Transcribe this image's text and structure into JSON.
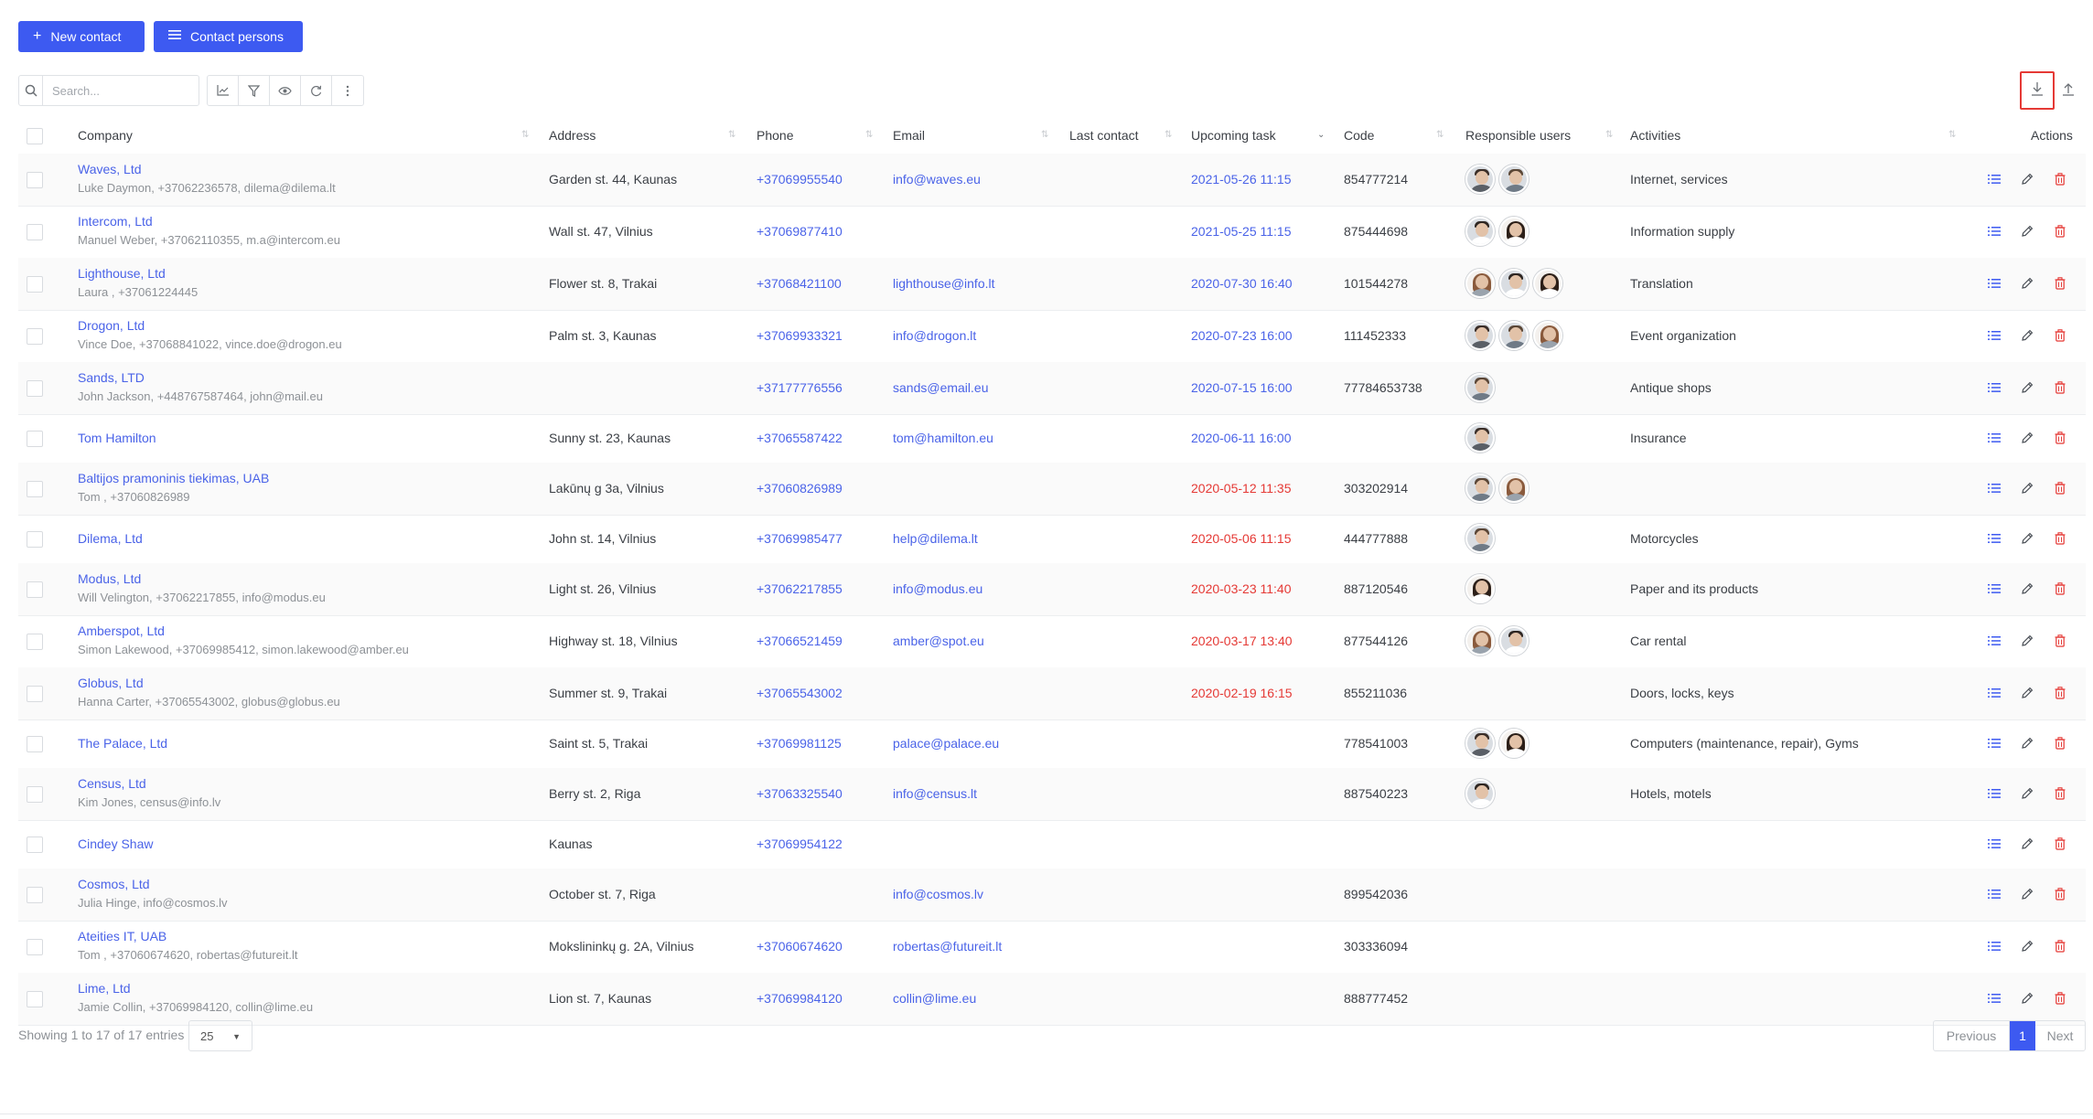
{
  "header": {
    "new_contact_label": "New contact",
    "contact_persons_label": "Contact persons"
  },
  "toolbar": {
    "search_placeholder": "Search...",
    "icons": [
      "search-icon",
      "chart-icon",
      "filter-icon",
      "eye-icon",
      "refresh-icon",
      "more-vertical-icon"
    ],
    "export_icon": "download-icon",
    "import_icon": "upload-icon"
  },
  "columns": {
    "company": "Company",
    "address": "Address",
    "phone": "Phone",
    "email": "Email",
    "last_contact": "Last contact",
    "upcoming_task": "Upcoming task",
    "code": "Code",
    "responsible_users": "Responsible users",
    "activities": "Activities",
    "actions": "Actions"
  },
  "rows": [
    {
      "company": "Waves, Ltd",
      "sub": "Luke Daymon, +37062236578, dilema@dilema.lt",
      "address": "Garden st. 44, Kaunas",
      "phone": "+37069955540",
      "email": "info@waves.eu",
      "last_contact": "",
      "task": "2021-05-26 11:15",
      "task_overdue": false,
      "code": "854777214",
      "users": [
        "m1",
        "m2"
      ],
      "activities": "Internet, services"
    },
    {
      "company": "Intercom, Ltd",
      "sub": "Manuel Weber, +37062110355, m.a@intercom.eu",
      "address": "Wall st. 47, Vilnius",
      "phone": "+37069877410",
      "email": "",
      "last_contact": "",
      "task": "2021-05-25 11:15",
      "task_overdue": false,
      "code": "875444698",
      "users": [
        "m3",
        "f1"
      ],
      "activities": "Information supply"
    },
    {
      "company": "Lighthouse, Ltd",
      "sub": "Laura , +37061224445",
      "address": "Flower st. 8, Trakai",
      "phone": "+37068421100",
      "email": "lighthouse@info.lt",
      "last_contact": "",
      "task": "2020-07-30 16:40",
      "task_overdue": false,
      "code": "101544278",
      "users": [
        "f2",
        "m3",
        "f1"
      ],
      "activities": "Translation"
    },
    {
      "company": "Drogon, Ltd",
      "sub": "Vince Doe, +37068841022, vince.doe@drogon.eu",
      "address": "Palm st. 3, Kaunas",
      "phone": "+37069933321",
      "email": "info@drogon.lt",
      "last_contact": "",
      "task": "2020-07-23 16:00",
      "task_overdue": false,
      "code": "111452333",
      "users": [
        "m1",
        "m2",
        "f2"
      ],
      "activities": "Event organization"
    },
    {
      "company": "Sands, LTD",
      "sub": "John Jackson, +448767587464, john@mail.eu",
      "address": "",
      "phone": "+37177776556",
      "email": "sands@email.eu",
      "last_contact": "",
      "task": "2020-07-15 16:00",
      "task_overdue": false,
      "code": "77784653738",
      "users": [
        "m2"
      ],
      "activities": "Antique shops"
    },
    {
      "company": "Tom Hamilton",
      "sub": "",
      "address": "Sunny st. 23, Kaunas",
      "phone": "+37065587422",
      "email": "tom@hamilton.eu",
      "last_contact": "",
      "task": "2020-06-11 16:00",
      "task_overdue": false,
      "code": "",
      "users": [
        "m1"
      ],
      "activities": "Insurance"
    },
    {
      "company": "Baltijos pramoninis tiekimas, UAB",
      "sub": "Tom , +37060826989",
      "address": "Lakūnų g 3a, Vilnius",
      "phone": "+37060826989",
      "email": "",
      "last_contact": "",
      "task": "2020-05-12 11:35",
      "task_overdue": true,
      "code": "303202914",
      "users": [
        "m2",
        "f2"
      ],
      "activities": ""
    },
    {
      "company": "Dilema, Ltd",
      "sub": "",
      "address": "John st. 14, Vilnius",
      "phone": "+37069985477",
      "email": "help@dilema.lt",
      "last_contact": "",
      "task": "2020-05-06 11:15",
      "task_overdue": true,
      "code": "444777888",
      "users": [
        "m2"
      ],
      "activities": "Motorcycles"
    },
    {
      "company": "Modus, Ltd",
      "sub": "Will Velington, +37062217855, info@modus.eu",
      "address": "Light st. 26, Vilnius",
      "phone": "+37062217855",
      "email": "info@modus.eu",
      "last_contact": "",
      "task": "2020-03-23 11:40",
      "task_overdue": true,
      "code": "887120546",
      "users": [
        "f1"
      ],
      "activities": "Paper and its products"
    },
    {
      "company": "Amberspot, Ltd",
      "sub": "Simon Lakewood, +37069985412, simon.lakewood@amber.eu",
      "address": "Highway st. 18, Vilnius",
      "phone": "+37066521459",
      "email": "amber@spot.eu",
      "last_contact": "",
      "task": "2020-03-17 13:40",
      "task_overdue": true,
      "code": "877544126",
      "users": [
        "f2",
        "m3"
      ],
      "activities": "Car rental"
    },
    {
      "company": "Globus, Ltd",
      "sub": "Hanna Carter, +37065543002, globus@globus.eu",
      "address": "Summer st. 9, Trakai",
      "phone": "+37065543002",
      "email": "",
      "last_contact": "",
      "task": "2020-02-19 16:15",
      "task_overdue": true,
      "code": "855211036",
      "users": [],
      "activities": "Doors, locks, keys"
    },
    {
      "company": "The Palace, Ltd",
      "sub": "",
      "address": "Saint st. 5, Trakai",
      "phone": "+37069981125",
      "email": "palace@palace.eu",
      "last_contact": "",
      "task": "",
      "task_overdue": false,
      "code": "778541003",
      "users": [
        "m1",
        "f1"
      ],
      "activities": "Computers (maintenance, repair), Gyms"
    },
    {
      "company": "Census, Ltd",
      "sub": "Kim Jones, census@info.lv",
      "address": "Berry st. 2, Riga",
      "phone": "+37063325540",
      "email": "info@census.lt",
      "last_contact": "",
      "task": "",
      "task_overdue": false,
      "code": "887540223",
      "users": [
        "m3"
      ],
      "activities": "Hotels, motels"
    },
    {
      "company": "Cindey Shaw",
      "sub": "",
      "address": "Kaunas",
      "phone": "+37069954122",
      "email": "",
      "last_contact": "",
      "task": "",
      "task_overdue": false,
      "code": "",
      "users": [],
      "activities": ""
    },
    {
      "company": "Cosmos, Ltd",
      "sub": "Julia Hinge, info@cosmos.lv",
      "address": "October st. 7, Riga",
      "phone": "",
      "email": "info@cosmos.lv",
      "last_contact": "",
      "task": "",
      "task_overdue": false,
      "code": "899542036",
      "users": [],
      "activities": ""
    },
    {
      "company": "Ateities IT, UAB",
      "sub": "Tom , +37060674620, robertas@futureit.lt",
      "address": "Mokslininkų g. 2A, Vilnius",
      "phone": "+37060674620",
      "email": "robertas@futureit.lt",
      "last_contact": "",
      "task": "",
      "task_overdue": false,
      "code": "303336094",
      "users": [],
      "activities": ""
    },
    {
      "company": "Lime, Ltd",
      "sub": "Jamie Collin, +37069984120, collin@lime.eu",
      "address": "Lion st. 7, Kaunas",
      "phone": "+37069984120",
      "email": "collin@lime.eu",
      "last_contact": "",
      "task": "",
      "task_overdue": false,
      "code": "888777452",
      "users": [],
      "activities": ""
    }
  ],
  "footer": {
    "showing": "Showing 1 to 17 of 17 entries",
    "page_size": "25",
    "previous": "Previous",
    "current_page": "1",
    "next": "Next"
  },
  "colors": {
    "primary": "#3d5af1",
    "link": "#4a63e8",
    "overdue": "#e53935",
    "delete": "#e53935",
    "action_icon": "#3d5af1"
  }
}
